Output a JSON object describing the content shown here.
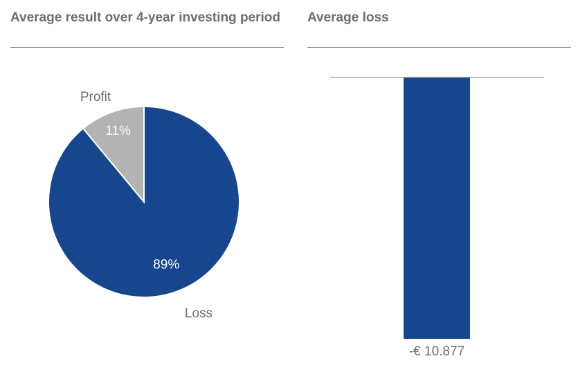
{
  "chart_data": [
    {
      "type": "pie",
      "title": "Average result over 4-year investing period",
      "slices": [
        {
          "label": "Loss",
          "value": 89,
          "display": "89%",
          "color": "#17468c"
        },
        {
          "label": "Profit",
          "value": 11,
          "display": "11%",
          "color": "#b3b3b3"
        }
      ]
    },
    {
      "type": "bar",
      "title": "Average loss",
      "categories": [
        "Average loss"
      ],
      "values": [
        -10877
      ],
      "data_labels": [
        "-€ 10.877"
      ],
      "color": "#17468c",
      "ylim": [
        -10877,
        0
      ]
    }
  ]
}
